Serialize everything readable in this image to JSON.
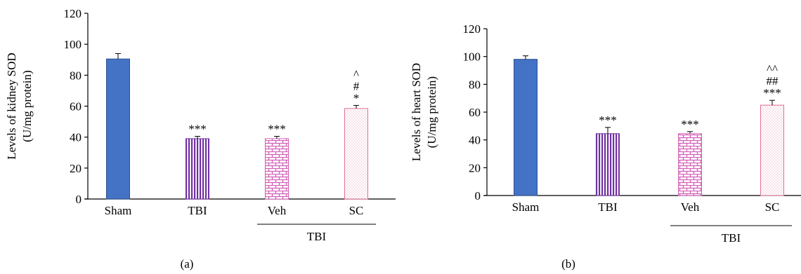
{
  "chart_data": [
    {
      "type": "bar",
      "panel_label": "(a)",
      "ylabel": "Levels of kidney SOD",
      "ylabel_unit": "(U/mg protein)",
      "categories": [
        "Sham",
        "TBI",
        "Veh",
        "SC"
      ],
      "values": [
        90.5,
        39.0,
        39.0,
        58.5
      ],
      "errors": [
        3.5,
        1.5,
        1.5,
        2.0
      ],
      "annotations": [
        [],
        [
          "***"
        ],
        [
          "***"
        ],
        [
          "*",
          "#",
          "^"
        ]
      ],
      "ylim": [
        0,
        120
      ],
      "yticks": [
        0,
        20,
        40,
        60,
        80,
        100,
        120
      ],
      "group_label": "TBI",
      "group_members": [
        "Veh",
        "SC"
      ],
      "bar_colors": [
        "#4472c4",
        "#7030a0",
        "#d35fb7",
        "#e0709a"
      ],
      "bar_patterns": [
        "solid",
        "vertical-lines",
        "brick",
        "dots"
      ],
      "grid": false
    },
    {
      "type": "bar",
      "panel_label": "(b)",
      "ylabel": "Levels of heart SOD",
      "ylabel_unit": "(U/mg protein)",
      "categories": [
        "Sham",
        "TBI",
        "Veh",
        "SC"
      ],
      "values": [
        98.0,
        44.5,
        44.5,
        65.0
      ],
      "errors": [
        2.5,
        4.5,
        1.5,
        3.5
      ],
      "annotations": [
        [],
        [
          "***"
        ],
        [
          "***"
        ],
        [
          "***",
          "##",
          "^^"
        ]
      ],
      "ylim": [
        0,
        120
      ],
      "yticks": [
        0,
        20,
        40,
        60,
        80,
        100,
        120
      ],
      "group_label": "TBI",
      "group_members": [
        "Veh",
        "SC"
      ],
      "bar_colors": [
        "#4472c4",
        "#7030a0",
        "#d35fb7",
        "#e0709a"
      ],
      "bar_patterns": [
        "solid",
        "vertical-lines",
        "brick",
        "dots"
      ],
      "grid": false
    }
  ]
}
